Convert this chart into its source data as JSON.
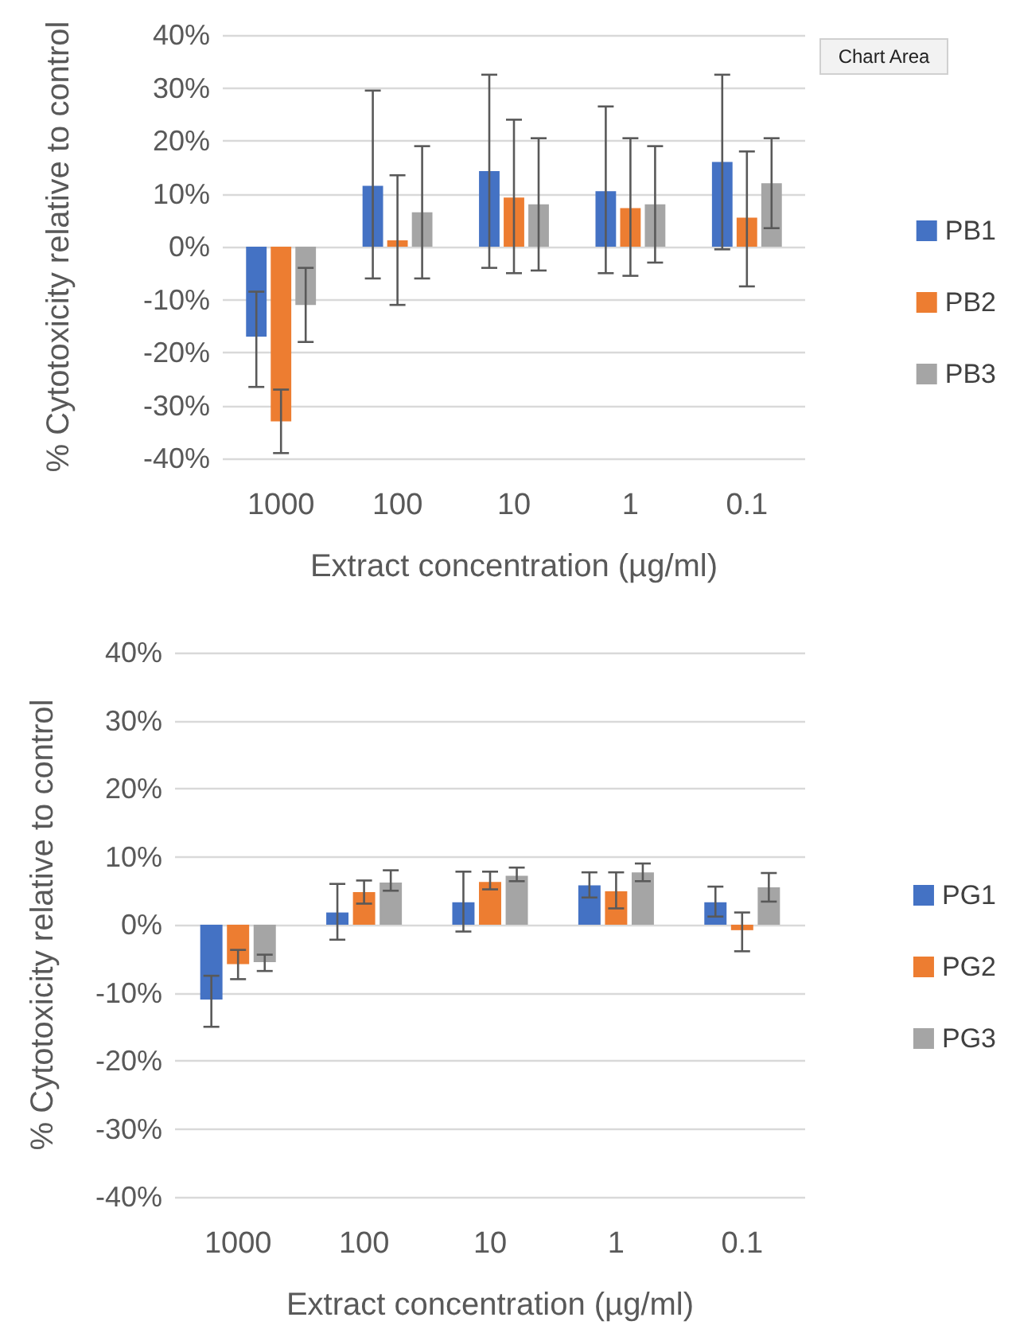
{
  "chart_data": [
    {
      "type": "bar",
      "xlabel": "Extract concentration (µg/ml)",
      "ylabel": "% Cytotoxicity relative to control",
      "categories": [
        "1000",
        "100",
        "10",
        "1",
        "0.1"
      ],
      "series": [
        {
          "name": "PB1",
          "color": "#4472c4",
          "values": [
            -17,
            11.5,
            14.3,
            10.5,
            16
          ],
          "errors": [
            [
              -26.5,
              -8.5
            ],
            [
              -6,
              29.5
            ],
            [
              -4,
              32.5
            ],
            [
              -5,
              26.5
            ],
            [
              -0.5,
              32.5
            ]
          ]
        },
        {
          "name": "PB2",
          "color": "#ed7d31",
          "values": [
            -33,
            1.2,
            9.3,
            7.3,
            5.5
          ],
          "errors": [
            [
              -39,
              -27
            ],
            [
              -11,
              13.5
            ],
            [
              -5,
              24
            ],
            [
              -5.5,
              20.5
            ],
            [
              -7.5,
              18
            ]
          ]
        },
        {
          "name": "PB3",
          "color": "#a5a5a5",
          "values": [
            -11,
            6.5,
            8,
            8,
            12
          ],
          "errors": [
            [
              -18,
              -4
            ],
            [
              -6,
              19
            ],
            [
              -4.5,
              20.5
            ],
            [
              -3,
              19
            ],
            [
              3.5,
              20.5
            ]
          ]
        }
      ],
      "ylim": [
        -40,
        40
      ],
      "yticks": [
        {
          "value": -40,
          "label": "-40%"
        },
        {
          "value": -30,
          "label": "-30%"
        },
        {
          "value": -20,
          "label": "-20%"
        },
        {
          "value": -10,
          "label": "-10%"
        },
        {
          "value": 0,
          "label": "0%"
        },
        {
          "value": 10,
          "label": "10%"
        },
        {
          "value": 20,
          "label": "20%"
        },
        {
          "value": 30,
          "label": "30%"
        },
        {
          "value": 40,
          "label": "40%"
        }
      ],
      "grid": "y",
      "legend": "right",
      "annotations": [
        "Chart Area"
      ]
    },
    {
      "type": "bar",
      "xlabel": "Extract concentration (µg/ml)",
      "ylabel": "% Cytotoxicity relative to control",
      "categories": [
        "1000",
        "100",
        "10",
        "1",
        "0.1"
      ],
      "series": [
        {
          "name": "PG1",
          "color": "#4472c4",
          "values": [
            -11,
            1.8,
            3.3,
            5.8,
            3.3
          ],
          "errors": [
            [
              -15,
              -7.5
            ],
            [
              -2.2,
              6
            ],
            [
              -1,
              7.8
            ],
            [
              4,
              7.7
            ],
            [
              1.2,
              5.6
            ]
          ]
        },
        {
          "name": "PG2",
          "color": "#ed7d31",
          "values": [
            -5.8,
            4.8,
            6.3,
            4.9,
            -0.8
          ],
          "errors": [
            [
              -8,
              -3.7
            ],
            [
              3.1,
              6.5
            ],
            [
              5.2,
              7.8
            ],
            [
              2.4,
              7.7
            ],
            [
              -3.9,
              1.8
            ]
          ]
        },
        {
          "name": "PG3",
          "color": "#a5a5a5",
          "values": [
            -5.5,
            6.2,
            7.2,
            7.7,
            5.5
          ],
          "errors": [
            [
              -6.8,
              -4.4
            ],
            [
              5,
              8
            ],
            [
              6.4,
              8.4
            ],
            [
              6.4,
              9
            ],
            [
              3.4,
              7.6
            ]
          ]
        }
      ],
      "ylim": [
        -40,
        40
      ],
      "yticks": [
        {
          "value": -40,
          "label": "-40%"
        },
        {
          "value": -30,
          "label": "-30%"
        },
        {
          "value": -20,
          "label": "-20%"
        },
        {
          "value": -10,
          "label": "-10%"
        },
        {
          "value": 0,
          "label": "0%"
        },
        {
          "value": 10,
          "label": "10%"
        },
        {
          "value": 20,
          "label": "20%"
        },
        {
          "value": 30,
          "label": "30%"
        },
        {
          "value": 40,
          "label": "40%"
        }
      ],
      "grid": "y",
      "legend": "right"
    }
  ]
}
